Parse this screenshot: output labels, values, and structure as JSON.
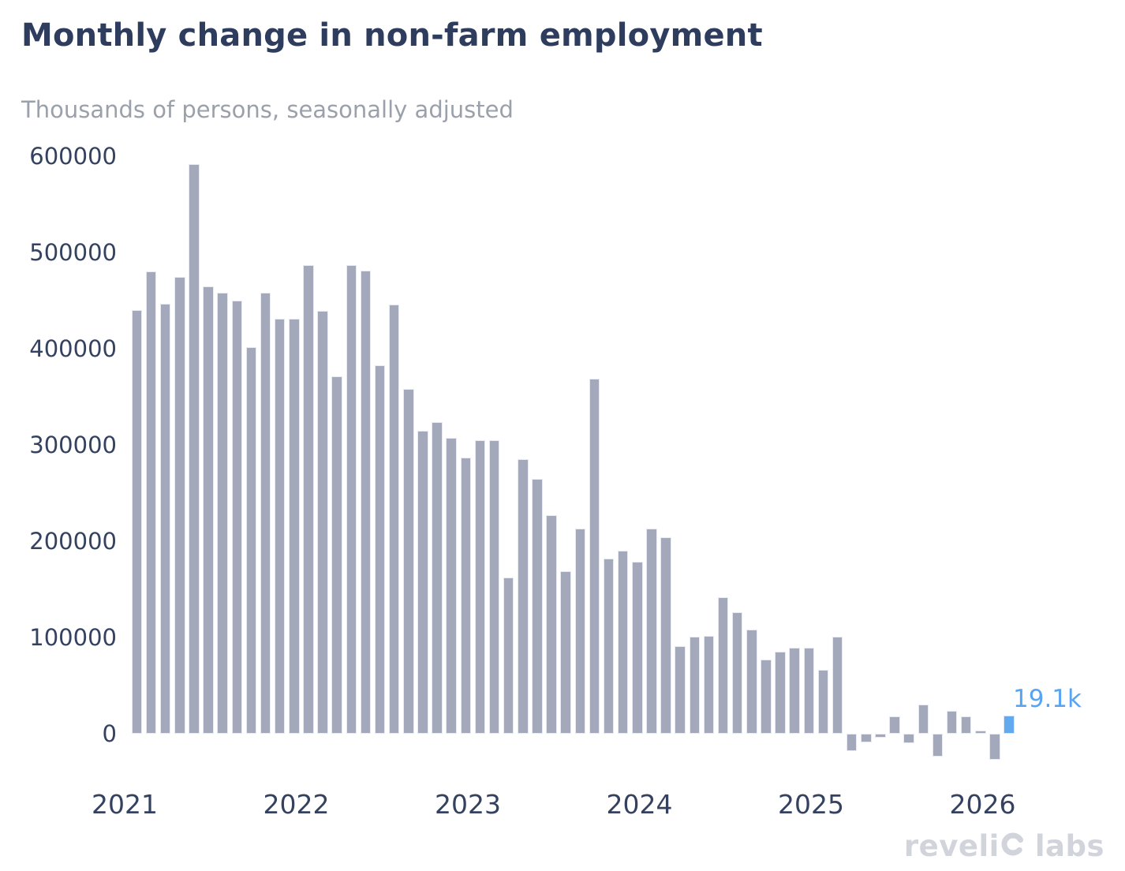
{
  "header": {
    "title": "Monthly change in non-farm employment",
    "subtitle": "Thousands of persons, seasonally adjusted"
  },
  "annotation": {
    "label": "19.1k",
    "color": "#56a4f2"
  },
  "watermark": {
    "full_text": "revelio labs",
    "prefix": "reveli",
    "suffix": "labs",
    "color": "#d2d4dc"
  },
  "colors": {
    "background": "#ffffff",
    "bar": "#a3a9ba",
    "bar_border": "#e7eaf3",
    "highlight_bar": "#63a9ee",
    "title_text": "#2e3c5e",
    "subtitle_text": "#9aa1ab",
    "axis_text": "#344260"
  },
  "chart_data": {
    "type": "bar",
    "title": "Monthly change in non-farm employment",
    "subtitle": "Thousands of persons, seasonally adjusted",
    "xlabel": "",
    "ylabel": "",
    "grid": false,
    "legend": false,
    "y_ticks": [
      600000,
      500000,
      400000,
      300000,
      200000,
      100000,
      0
    ],
    "y_tick_labels": [
      "600000",
      "500000",
      "400000",
      "300000",
      "200000",
      "100000",
      "0"
    ],
    "ylim": [
      -30000,
      600000
    ],
    "x_year_ticks": [
      "2021",
      "2022",
      "2023",
      "2024",
      "2025",
      "2026"
    ],
    "x_range": "2021-01 to 2026-02",
    "years": [
      "2021",
      "2022",
      "2023",
      "2024",
      "2025",
      "2026"
    ],
    "values_by_year": {
      "2021": [
        440000,
        480000,
        447000,
        475000,
        592000,
        465000,
        458000,
        450000,
        402000,
        458000,
        431000,
        431000
      ],
      "2022": [
        487000,
        439000,
        371000,
        487000,
        481000,
        383000,
        446000,
        358000,
        315000,
        324000,
        307000,
        287000
      ],
      "2023": [
        305000,
        305000,
        162000,
        285000,
        265000,
        227000,
        169000,
        213000,
        369000,
        182000,
        190000,
        179000
      ],
      "2024": [
        213000,
        204000,
        91000,
        101000,
        102000,
        142000,
        126000,
        108000,
        77000,
        85000,
        89000,
        89000
      ],
      "2025": [
        66000,
        101000,
        -18000,
        -9000,
        -4000,
        18000,
        -10000,
        30000,
        -24000,
        24000,
        18000,
        3000
      ],
      "2026": [
        -27000,
        19100
      ]
    },
    "highlight": {
      "month": "2026-02",
      "value": 19100,
      "label": "19.1k",
      "color": "#63a9ee"
    }
  }
}
